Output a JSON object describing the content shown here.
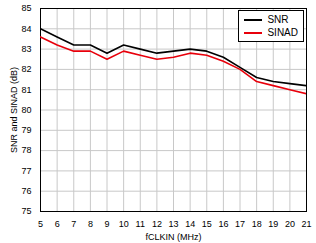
{
  "chart_data": {
    "type": "line",
    "x_label": "fCLKIN (MHz)",
    "y_label": "SNR and SINAD (dB)",
    "x": [
      5,
      6,
      7,
      8,
      9,
      10,
      11,
      12,
      13,
      14,
      15,
      16,
      17,
      18,
      19,
      20,
      21
    ],
    "series": [
      {
        "name": "SNR",
        "color": "#000000",
        "values": [
          84.0,
          83.6,
          83.2,
          83.2,
          82.8,
          83.2,
          83.0,
          82.8,
          82.9,
          83.0,
          82.9,
          82.6,
          82.1,
          81.6,
          81.4,
          81.3,
          81.2
        ]
      },
      {
        "name": "SINAD",
        "color": "#e8000b",
        "values": [
          83.6,
          83.2,
          82.9,
          82.9,
          82.5,
          82.9,
          82.7,
          82.5,
          82.6,
          82.8,
          82.7,
          82.4,
          82.0,
          81.4,
          81.2,
          81.0,
          80.8
        ]
      }
    ],
    "xlim": [
      5,
      21
    ],
    "xticks": [
      5,
      6,
      7,
      8,
      9,
      10,
      11,
      12,
      13,
      14,
      15,
      16,
      17,
      18,
      19,
      20,
      21
    ],
    "ylim": [
      75,
      85
    ],
    "yticks": [
      75,
      76,
      77,
      78,
      79,
      80,
      81,
      82,
      83,
      84,
      85
    ],
    "grid": true,
    "legend": "top-right"
  }
}
